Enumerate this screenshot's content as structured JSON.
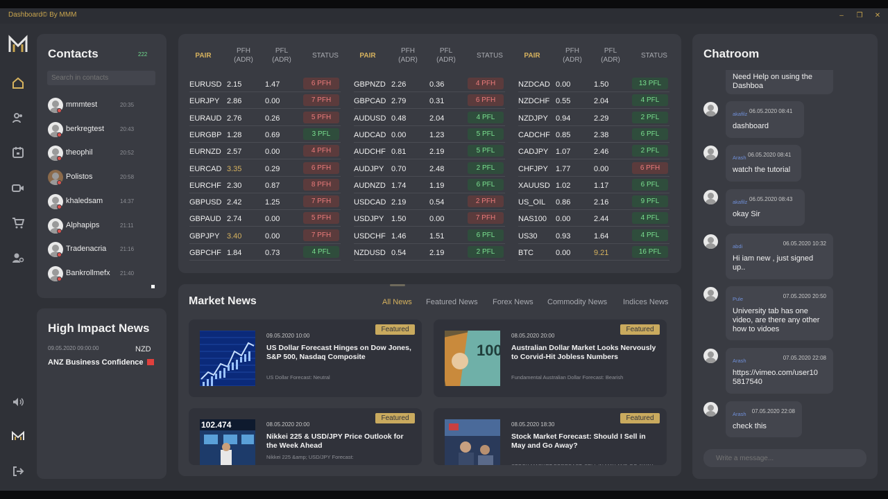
{
  "window": {
    "title": "Dashboard© By MMM",
    "minimize": "–",
    "maximize": "❐",
    "close": "✕"
  },
  "nav": {
    "logo": "M",
    "items": [
      "home-icon",
      "contacts-icon",
      "calendar-icon",
      "video-icon",
      "cart-icon",
      "user-settings-icon"
    ],
    "bottom": [
      "volume-icon",
      "brand-icon",
      "logout-icon"
    ]
  },
  "contacts": {
    "title": "Contacts",
    "count": "222",
    "search_placeholder": "Search in contacts",
    "items": [
      {
        "name": "mmmtest",
        "time": "20:35"
      },
      {
        "name": "berkregtest",
        "time": "20:43"
      },
      {
        "name": "theophil",
        "time": "20:52"
      },
      {
        "name": "Polistos",
        "time": "20:58"
      },
      {
        "name": "khaledsam",
        "time": "14:37"
      },
      {
        "name": "Alphapips",
        "time": "21:11"
      },
      {
        "name": "Tradenacria",
        "time": "21:16"
      },
      {
        "name": "Bankrollmefx",
        "time": "21:40"
      }
    ]
  },
  "high_impact": {
    "title": "High Impact News",
    "date": "09.05.2020 09:00:00",
    "currency": "NZD",
    "event": "ANZ Business Confidence"
  },
  "fx_table": {
    "headers": {
      "pair": "PAIR",
      "pfh": "PFH\n(ADR)",
      "pfl": "PFL\n(ADR)",
      "status": "STATUS"
    },
    "groups": [
      [
        {
          "pair": "EURUSD",
          "pfh": "2.15",
          "pfl": "1.47",
          "status": "6 PFH",
          "tone": "red"
        },
        {
          "pair": "EURJPY",
          "pfh": "2.86",
          "pfl": "0.00",
          "status": "7 PFH",
          "tone": "red"
        },
        {
          "pair": "EURAUD",
          "pfh": "2.76",
          "pfl": "0.26",
          "status": "5 PFH",
          "tone": "red"
        },
        {
          "pair": "EURGBP",
          "pfh": "1.28",
          "pfl": "0.69",
          "status": "3 PFL",
          "tone": "green"
        },
        {
          "pair": "EURNZD",
          "pfh": "2.57",
          "pfl": "0.00",
          "status": "4 PFH",
          "tone": "red"
        },
        {
          "pair": "EURCAD",
          "pfh": "3.35",
          "pfl": "0.29",
          "status": "6 PFH",
          "tone": "red",
          "hl": "pfh"
        },
        {
          "pair": "EURCHF",
          "pfh": "2.30",
          "pfl": "0.87",
          "status": "8 PFH",
          "tone": "red"
        },
        {
          "pair": "GBPUSD",
          "pfh": "2.42",
          "pfl": "1.25",
          "status": "7 PFH",
          "tone": "red"
        },
        {
          "pair": "GBPAUD",
          "pfh": "2.74",
          "pfl": "0.00",
          "status": "5 PFH",
          "tone": "red"
        },
        {
          "pair": "GBPJPY",
          "pfh": "3.40",
          "pfl": "0.00",
          "status": "7 PFH",
          "tone": "red",
          "hl": "pfh"
        },
        {
          "pair": "GBPCHF",
          "pfh": "1.84",
          "pfl": "0.73",
          "status": "4 PFL",
          "tone": "green"
        }
      ],
      [
        {
          "pair": "GBPNZD",
          "pfh": "2.26",
          "pfl": "0.36",
          "status": "4 PFH",
          "tone": "red"
        },
        {
          "pair": "GBPCAD",
          "pfh": "2.79",
          "pfl": "0.31",
          "status": "6 PFH",
          "tone": "red"
        },
        {
          "pair": "AUDUSD",
          "pfh": "0.48",
          "pfl": "2.04",
          "status": "4 PFL",
          "tone": "green"
        },
        {
          "pair": "AUDCAD",
          "pfh": "0.00",
          "pfl": "1.23",
          "status": "5 PFL",
          "tone": "green"
        },
        {
          "pair": "AUDCHF",
          "pfh": "0.81",
          "pfl": "2.19",
          "status": "5 PFL",
          "tone": "green"
        },
        {
          "pair": "AUDJPY",
          "pfh": "0.70",
          "pfl": "2.48",
          "status": "2 PFL",
          "tone": "green"
        },
        {
          "pair": "AUDNZD",
          "pfh": "1.74",
          "pfl": "1.19",
          "status": "6 PFL",
          "tone": "green"
        },
        {
          "pair": "USDCAD",
          "pfh": "2.19",
          "pfl": "0.54",
          "status": "2 PFH",
          "tone": "red"
        },
        {
          "pair": "USDJPY",
          "pfh": "1.50",
          "pfl": "0.00",
          "status": "7 PFH",
          "tone": "red"
        },
        {
          "pair": "USDCHF",
          "pfh": "1.46",
          "pfl": "1.51",
          "status": "6 PFL",
          "tone": "green"
        },
        {
          "pair": "NZDUSD",
          "pfh": "0.54",
          "pfl": "2.19",
          "status": "2 PFL",
          "tone": "green"
        }
      ],
      [
        {
          "pair": "NZDCAD",
          "pfh": "0.00",
          "pfl": "1.50",
          "status": "13 PFL",
          "tone": "green"
        },
        {
          "pair": "NZDCHF",
          "pfh": "0.55",
          "pfl": "2.04",
          "status": "4 PFL",
          "tone": "green"
        },
        {
          "pair": "NZDJPY",
          "pfh": "0.94",
          "pfl": "2.29",
          "status": "2 PFL",
          "tone": "green"
        },
        {
          "pair": "CADCHF",
          "pfh": "0.85",
          "pfl": "2.38",
          "status": "6 PFL",
          "tone": "green"
        },
        {
          "pair": "CADJPY",
          "pfh": "1.07",
          "pfl": "2.46",
          "status": "2 PFL",
          "tone": "green"
        },
        {
          "pair": "CHFJPY",
          "pfh": "1.77",
          "pfl": "0.00",
          "status": "6 PFH",
          "tone": "red"
        },
        {
          "pair": "XAUUSD",
          "pfh": "1.02",
          "pfl": "1.17",
          "status": "6 PFL",
          "tone": "green"
        },
        {
          "pair": "US_OIL",
          "pfh": "0.86",
          "pfl": "2.16",
          "status": "9 PFL",
          "tone": "green"
        },
        {
          "pair": "NAS100",
          "pfh": "0.00",
          "pfl": "2.44",
          "status": "4 PFL",
          "tone": "green"
        },
        {
          "pair": "US30",
          "pfh": "0.93",
          "pfl": "1.64",
          "status": "4 PFL",
          "tone": "green"
        },
        {
          "pair": "BTC",
          "pfh": "0.00",
          "pfl": "9.21",
          "status": "16 PFL",
          "tone": "green",
          "hl": "pfl"
        }
      ]
    ]
  },
  "market_news": {
    "title": "Market News",
    "tabs": [
      "All News",
      "Featured News",
      "Forex News",
      "Commodity News",
      "Indices News"
    ],
    "active_tab": "All News",
    "items": [
      {
        "date": "09.05.2020 10:00",
        "headline": "US Dollar Forecast Hinges on Dow Jones, S&P 500, Nasdaq Composite",
        "summary": "US Dollar Forecast: Neutral",
        "badge": "Featured",
        "thumb": "stock-chart"
      },
      {
        "date": "08.05.2020 20:00",
        "headline": "Australian Dollar Market Looks Nervously to Corvid-Hit Jobless Numbers",
        "summary": "Fundamental Australian Dollar Forecast: Bearish",
        "badge": "Featured",
        "thumb": "banknotes"
      },
      {
        "date": "08.05.2020 20:00",
        "headline": "Nikkei 225 & USD/JPY Price Outlook for the Week Ahead",
        "summary": "Nikkei 225 &amp; USD/JPY Forecast:",
        "badge": "Featured",
        "thumb": "ticker-board",
        "thumb_text": "102.474"
      },
      {
        "date": "08.05.2020 18:30",
        "headline": "Stock Market Forecast: Should I Sell in May and Go Away?",
        "summary": "STOCK MARKET FORECAST: SELL IN MAY AND GO AWAY ANOMALY AT CO",
        "badge": "Featured",
        "thumb": "trading-floor"
      }
    ]
  },
  "chatroom": {
    "title": "Chatroom",
    "input_placeholder": "Write a message...",
    "messages": [
      {
        "author": "",
        "time": "",
        "text": "Need Help on using the\nDashboa"
      },
      {
        "author": "akafilz",
        "time": "06.05.2020 08:41",
        "text": "dashboard"
      },
      {
        "author": "Arash",
        "time": "06.05.2020 08:41",
        "text": "watch the tutorial"
      },
      {
        "author": "akafilz",
        "time": "06.05.2020 08:43",
        "text": "okay Sir"
      },
      {
        "author": "abdi",
        "time": "06.05.2020 10:32",
        "text": "Hi iam new , just signed\nup.."
      },
      {
        "author": "Pule",
        "time": "07.05.2020 20:50",
        "text": "University tab has one\nvideo, are there any other\nhow to vidoes"
      },
      {
        "author": "Arash",
        "time": "07.05.2020 22:08",
        "text": "https://vimeo.com/user10\n5817540"
      },
      {
        "author": "Arash",
        "time": "07.05.2020 22:08",
        "text": "check this"
      }
    ]
  }
}
